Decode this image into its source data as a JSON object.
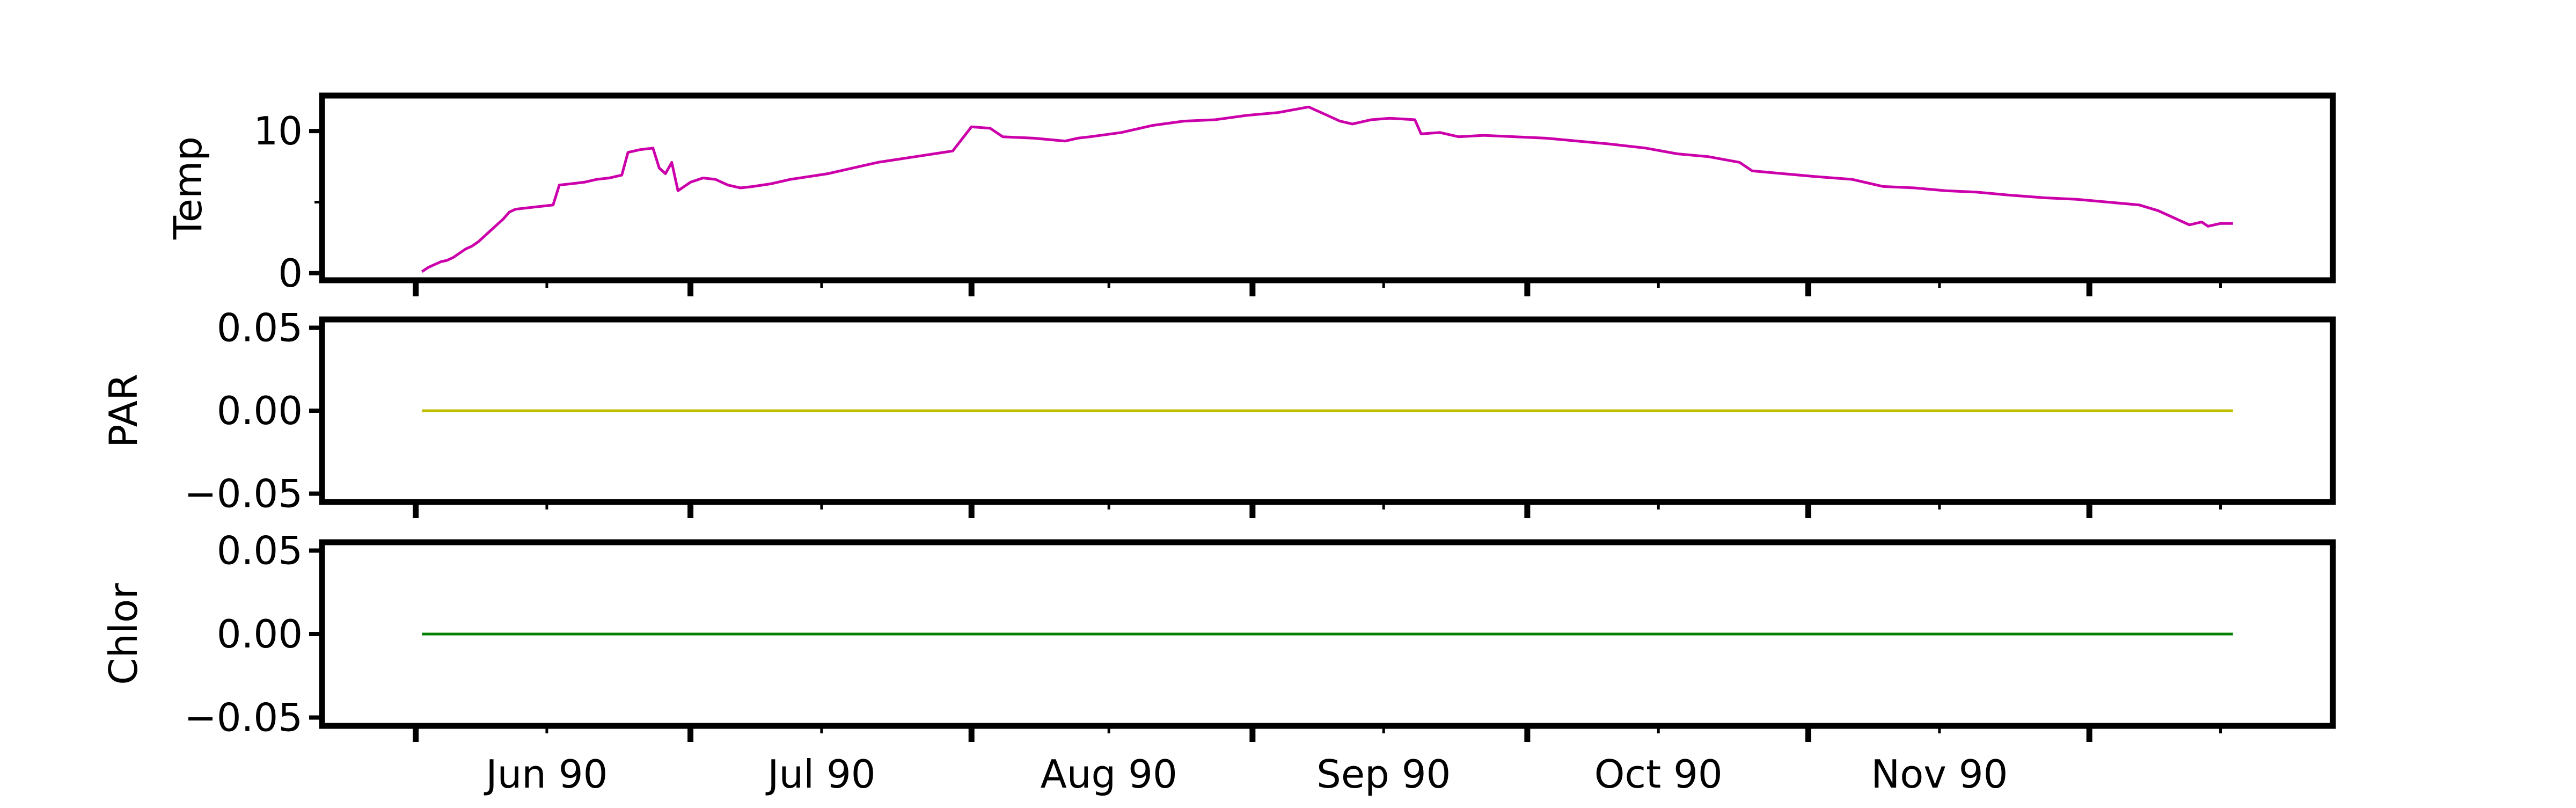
{
  "chart_data": [
    {
      "type": "line",
      "ylabel": "Temp",
      "ylim": [
        -0.5,
        12.5
      ],
      "yticks": [
        {
          "value": 0,
          "label": "0"
        },
        {
          "value": 10,
          "label": "10"
        }
      ],
      "minor_yticks": [
        5
      ],
      "series": [
        {
          "color": "#cc00aa",
          "points": [
            [
              "1990-05-19",
              0.1
            ],
            [
              "1990-05-20",
              0.4
            ],
            [
              "1990-05-21",
              0.6
            ],
            [
              "1990-05-22",
              0.8
            ],
            [
              "1990-05-23",
              0.9
            ],
            [
              "1990-05-24",
              1.1
            ],
            [
              "1990-05-25",
              1.4
            ],
            [
              "1990-05-26",
              1.7
            ],
            [
              "1990-05-27",
              1.9
            ],
            [
              "1990-05-28",
              2.2
            ],
            [
              "1990-05-29",
              2.6
            ],
            [
              "1990-05-30",
              3.0
            ],
            [
              "1990-05-31",
              3.4
            ],
            [
              "1990-06-01",
              3.8
            ],
            [
              "1990-06-02",
              4.3
            ],
            [
              "1990-06-03",
              4.5
            ],
            [
              "1990-06-05",
              4.6
            ],
            [
              "1990-06-07",
              4.7
            ],
            [
              "1990-06-09",
              4.8
            ],
            [
              "1990-06-10",
              6.2
            ],
            [
              "1990-06-12",
              6.3
            ],
            [
              "1990-06-14",
              6.4
            ],
            [
              "1990-06-16",
              6.6
            ],
            [
              "1990-06-18",
              6.7
            ],
            [
              "1990-06-20",
              6.9
            ],
            [
              "1990-06-21",
              8.5
            ],
            [
              "1990-06-23",
              8.7
            ],
            [
              "1990-06-25",
              8.8
            ],
            [
              "1990-06-26",
              7.4
            ],
            [
              "1990-06-27",
              7.0
            ],
            [
              "1990-06-28",
              7.8
            ],
            [
              "1990-06-29",
              5.8
            ],
            [
              "1990-07-01",
              6.4
            ],
            [
              "1990-07-03",
              6.7
            ],
            [
              "1990-07-05",
              6.6
            ],
            [
              "1990-07-07",
              6.2
            ],
            [
              "1990-07-09",
              6.0
            ],
            [
              "1990-07-11",
              6.1
            ],
            [
              "1990-07-14",
              6.3
            ],
            [
              "1990-07-17",
              6.6
            ],
            [
              "1990-07-20",
              6.8
            ],
            [
              "1990-07-23",
              7.0
            ],
            [
              "1990-07-26",
              7.3
            ],
            [
              "1990-07-29",
              7.6
            ],
            [
              "1990-07-31",
              7.8
            ],
            [
              "1990-08-03",
              8.0
            ],
            [
              "1990-08-06",
              8.2
            ],
            [
              "1990-08-09",
              8.4
            ],
            [
              "1990-08-12",
              8.6
            ],
            [
              "1990-08-15",
              10.3
            ],
            [
              "1990-08-18",
              10.2
            ],
            [
              "1990-08-20",
              9.6
            ],
            [
              "1990-08-25",
              9.5
            ],
            [
              "1990-08-30",
              9.3
            ],
            [
              "1990-09-01",
              9.5
            ],
            [
              "1990-09-03",
              9.6
            ],
            [
              "1990-09-08",
              9.9
            ],
            [
              "1990-09-13",
              10.4
            ],
            [
              "1990-09-18",
              10.7
            ],
            [
              "1990-09-23",
              10.8
            ],
            [
              "1990-09-28",
              11.1
            ],
            [
              "1990-10-03",
              11.3
            ],
            [
              "1990-10-08",
              11.7
            ],
            [
              "1990-10-09",
              11.5
            ],
            [
              "1990-10-11",
              11.1
            ],
            [
              "1990-10-13",
              10.7
            ],
            [
              "1990-10-15",
              10.5
            ],
            [
              "1990-10-18",
              10.8
            ],
            [
              "1990-10-21",
              10.9
            ],
            [
              "1990-10-25",
              10.8
            ],
            [
              "1990-10-26",
              9.8
            ],
            [
              "1990-10-29",
              9.9
            ],
            [
              "1990-11-01",
              9.6
            ],
            [
              "1990-11-05",
              9.7
            ],
            [
              "1990-11-10",
              9.6
            ],
            [
              "1990-11-15",
              9.5
            ],
            [
              "1990-11-20",
              9.3
            ],
            [
              "1990-11-25",
              9.1
            ],
            [
              "1990-12-01",
              8.8
            ],
            [
              "1990-12-06",
              8.4
            ],
            [
              "1990-12-11",
              8.2
            ],
            [
              "1990-12-16",
              7.8
            ],
            [
              "1990-12-18",
              7.2
            ],
            [
              "1990-12-23",
              7.0
            ],
            [
              "1990-12-28",
              6.8
            ],
            [
              "1991-01-03",
              6.6
            ],
            [
              "1991-01-08",
              6.1
            ],
            [
              "1991-01-13",
              6.0
            ],
            [
              "1991-01-18",
              5.8
            ],
            [
              "1991-01-23",
              5.7
            ],
            [
              "1991-01-28",
              5.5
            ],
            [
              "1991-02-03",
              5.3
            ],
            [
              "1991-02-08",
              5.2
            ],
            [
              "1991-02-13",
              5.0
            ],
            [
              "1991-02-18",
              4.8
            ],
            [
              "1991-02-21",
              4.4
            ],
            [
              "1991-02-24",
              3.8
            ],
            [
              "1991-02-26",
              3.4
            ],
            [
              "1991-02-28",
              3.6
            ],
            [
              "1991-03-01",
              3.3
            ],
            [
              "1991-03-03",
              3.5
            ],
            [
              "1991-03-05",
              3.5
            ]
          ]
        }
      ]
    },
    {
      "type": "line",
      "ylabel": "PAR",
      "ylim": [
        -0.055,
        0.055
      ],
      "yticks": [
        {
          "value": -0.05,
          "label": "−0.05"
        },
        {
          "value": 0,
          "label": "0.00"
        },
        {
          "value": 0.05,
          "label": "0.05"
        }
      ],
      "series": [
        {
          "color": "#bfbf00",
          "points": [
            [
              "1990-05-19",
              0
            ],
            [
              "1991-03-05",
              0
            ]
          ]
        }
      ]
    },
    {
      "type": "line",
      "ylabel": "Chlor",
      "ylim": [
        -0.055,
        0.055
      ],
      "yticks": [
        {
          "value": -0.05,
          "label": "−0.05"
        },
        {
          "value": 0,
          "label": "0.00"
        },
        {
          "value": 0.05,
          "label": "0.05"
        }
      ],
      "series": [
        {
          "color": "#008000",
          "points": [
            [
              "1990-05-19",
              0
            ],
            [
              "1991-03-05",
              0
            ]
          ]
        }
      ]
    }
  ],
  "x_axis": {
    "range": [
      "1990-05-03",
      "1991-03-21"
    ],
    "major_ticks": [
      "1990-05-18",
      "1990-07-01",
      "1990-08-15",
      "1990-09-29",
      "1990-11-12",
      "1990-12-27",
      "1991-02-10"
    ],
    "minor_ticks": [
      "1990-06-08",
      "1990-07-22",
      "1990-09-06",
      "1990-10-20",
      "1990-12-03",
      "1991-01-17",
      "1991-03-03"
    ],
    "labels": [
      {
        "date": "1990-06-08",
        "text": "Jun 90"
      },
      {
        "date": "1990-07-22",
        "text": "Jul 90"
      },
      {
        "date": "1990-09-06",
        "text": "Aug 90"
      },
      {
        "date": "1990-10-20",
        "text": "Sep 90"
      },
      {
        "date": "1990-12-03",
        "text": "Oct 90"
      },
      {
        "date": "1991-01-17",
        "text": "Nov 90"
      }
    ]
  }
}
